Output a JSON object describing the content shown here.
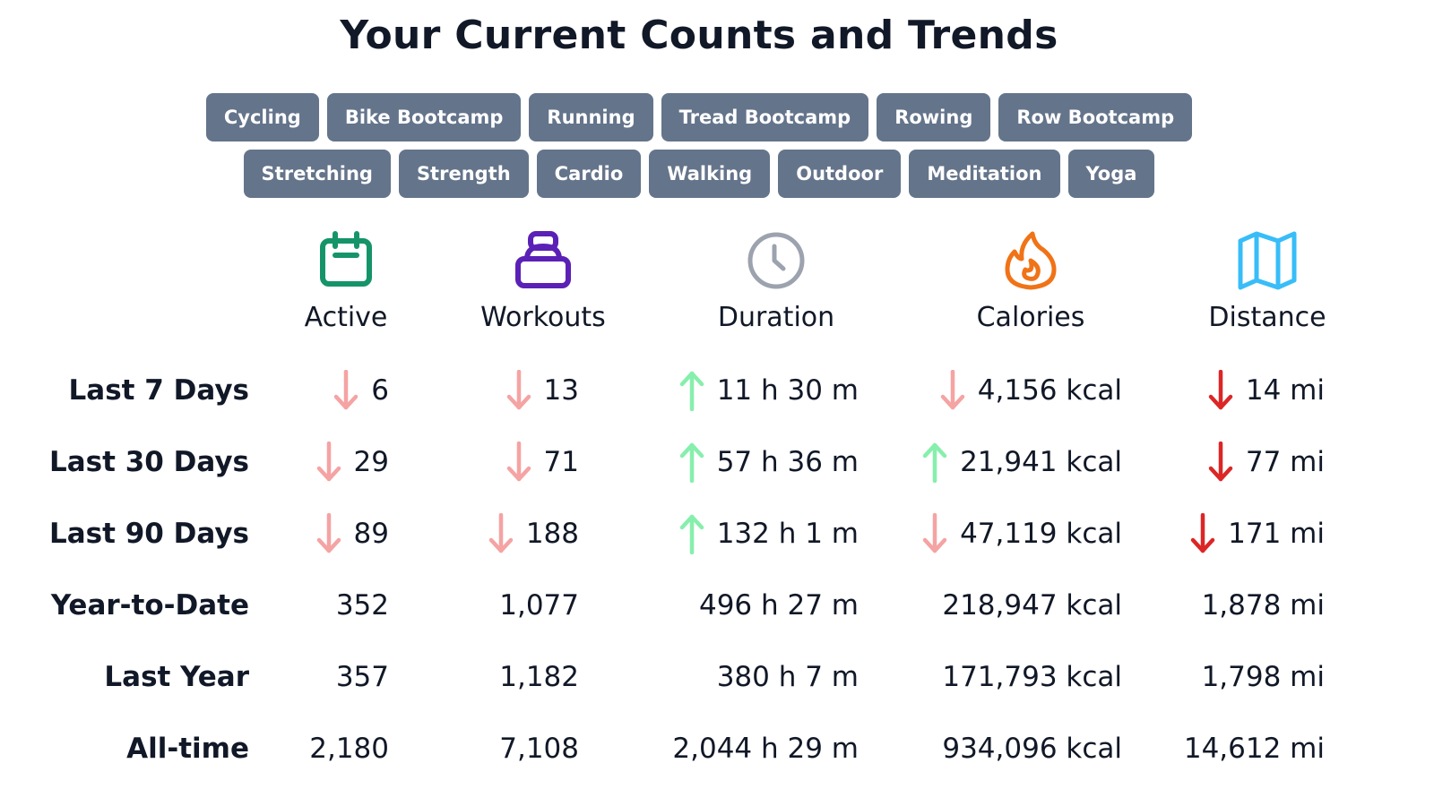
{
  "title": "Your Current Counts and Trends",
  "filters_row1": [
    "Cycling",
    "Bike Bootcamp",
    "Running",
    "Tread Bootcamp",
    "Rowing",
    "Row Bootcamp"
  ],
  "filters_row2": [
    "Stretching",
    "Strength",
    "Cardio",
    "Walking",
    "Outdoor",
    "Meditation",
    "Yoga"
  ],
  "colors": {
    "pill_bg": "#64748b",
    "active_icon": "#15946a",
    "workouts_icon": "#5b21b6",
    "duration_icon": "#9ca3af",
    "calories_icon": "#f07317",
    "distance_icon": "#38bdf8",
    "trend_up": "#86efac",
    "trend_down_light": "#f5a3a3",
    "trend_down_strong": "#dc2626"
  },
  "columns": [
    {
      "key": "active",
      "label": "Active",
      "icon": "calendar-icon"
    },
    {
      "key": "workouts",
      "label": "Workouts",
      "icon": "kettlebell-icon"
    },
    {
      "key": "duration",
      "label": "Duration",
      "icon": "clock-icon"
    },
    {
      "key": "calories",
      "label": "Calories",
      "icon": "flame-icon"
    },
    {
      "key": "distance",
      "label": "Distance",
      "icon": "map-icon"
    }
  ],
  "rows": [
    {
      "label": "Last 7 Days",
      "cells": [
        {
          "value": "6",
          "trend": "down-light"
        },
        {
          "value": "13",
          "trend": "down-light"
        },
        {
          "value": "11 h 30 m",
          "trend": "up"
        },
        {
          "value": "4,156 kcal",
          "trend": "down-light"
        },
        {
          "value": "14 mi",
          "trend": "down-strong"
        }
      ]
    },
    {
      "label": "Last 30 Days",
      "cells": [
        {
          "value": "29",
          "trend": "down-light"
        },
        {
          "value": "71",
          "trend": "down-light"
        },
        {
          "value": "57 h 36 m",
          "trend": "up"
        },
        {
          "value": "21,941 kcal",
          "trend": "up"
        },
        {
          "value": "77 mi",
          "trend": "down-strong"
        }
      ]
    },
    {
      "label": "Last 90 Days",
      "cells": [
        {
          "value": "89",
          "trend": "down-light"
        },
        {
          "value": "188",
          "trend": "down-light"
        },
        {
          "value": "132 h 1 m",
          "trend": "up"
        },
        {
          "value": "47,119 kcal",
          "trend": "down-light"
        },
        {
          "value": "171 mi",
          "trend": "down-strong"
        }
      ]
    },
    {
      "label": "Year-to-Date",
      "cells": [
        {
          "value": "352",
          "trend": "none"
        },
        {
          "value": "1,077",
          "trend": "none"
        },
        {
          "value": "496 h 27 m",
          "trend": "none"
        },
        {
          "value": "218,947 kcal",
          "trend": "none"
        },
        {
          "value": "1,878 mi",
          "trend": "none"
        }
      ]
    },
    {
      "label": "Last Year",
      "cells": [
        {
          "value": "357",
          "trend": "none"
        },
        {
          "value": "1,182",
          "trend": "none"
        },
        {
          "value": "380 h 7 m",
          "trend": "none"
        },
        {
          "value": "171,793 kcal",
          "trend": "none"
        },
        {
          "value": "1,798 mi",
          "trend": "none"
        }
      ]
    },
    {
      "label": "All-time",
      "cells": [
        {
          "value": "2,180",
          "trend": "none"
        },
        {
          "value": "7,108",
          "trend": "none"
        },
        {
          "value": "2,044 h 29 m",
          "trend": "none"
        },
        {
          "value": "934,096 kcal",
          "trend": "none"
        },
        {
          "value": "14,612 mi",
          "trend": "none"
        }
      ]
    }
  ]
}
